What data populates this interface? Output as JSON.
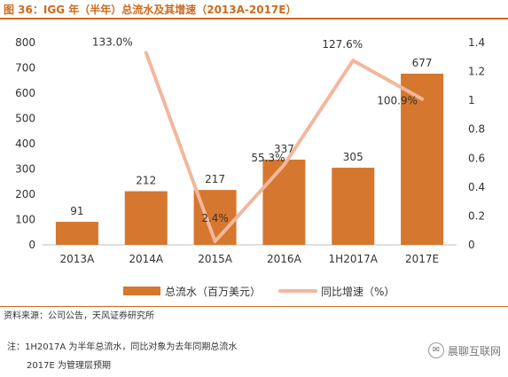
{
  "title": "图 36：IGG 年（半年）总流水及其增速（2013A-2017E）",
  "chart_data": {
    "type": "bar",
    "categories": [
      "2013A",
      "2014A",
      "2015A",
      "2016A",
      "1H2017A",
      "2017E"
    ],
    "series": [
      {
        "name": "总流水（百万美元）",
        "type": "bar",
        "axis": "left",
        "values": [
          91,
          212,
          217,
          337,
          305,
          677
        ],
        "labels": [
          "91",
          "212",
          "217",
          "337",
          "305",
          "677"
        ],
        "color": "#d5772e"
      },
      {
        "name": "同比增速（%）",
        "type": "line",
        "axis": "right",
        "x": [
          "2014A",
          "2015A",
          "2016A",
          "1H2017A",
          "2017E"
        ],
        "values": [
          1.33,
          0.024,
          0.553,
          1.276,
          1.009
        ],
        "labels": [
          "133.0%",
          "2.4%",
          "55.3%",
          "127.6%",
          "100.9%"
        ],
        "color": "#f2b79c"
      }
    ],
    "y_left": {
      "min": 0,
      "max": 800,
      "ticks": [
        "0",
        "100",
        "200",
        "300",
        "400",
        "500",
        "600",
        "700",
        "800"
      ]
    },
    "y_right": {
      "min": 0,
      "max": 1.4,
      "ticks": [
        "0",
        "0.2",
        "0.4",
        "0.6",
        "0.8",
        "1",
        "1.2",
        "1.4"
      ]
    },
    "grid": false,
    "legend_position": "bottom"
  },
  "footer": {
    "source": "资料来源：公司公告，天风证券研究所",
    "note1": "注：1H2017A 为半年总流水，同比对象为去年同期总流水",
    "note2": "2017E 为管理层预期"
  },
  "watermark": {
    "icon": "wechat-icon",
    "text": "晨聊互联网"
  }
}
